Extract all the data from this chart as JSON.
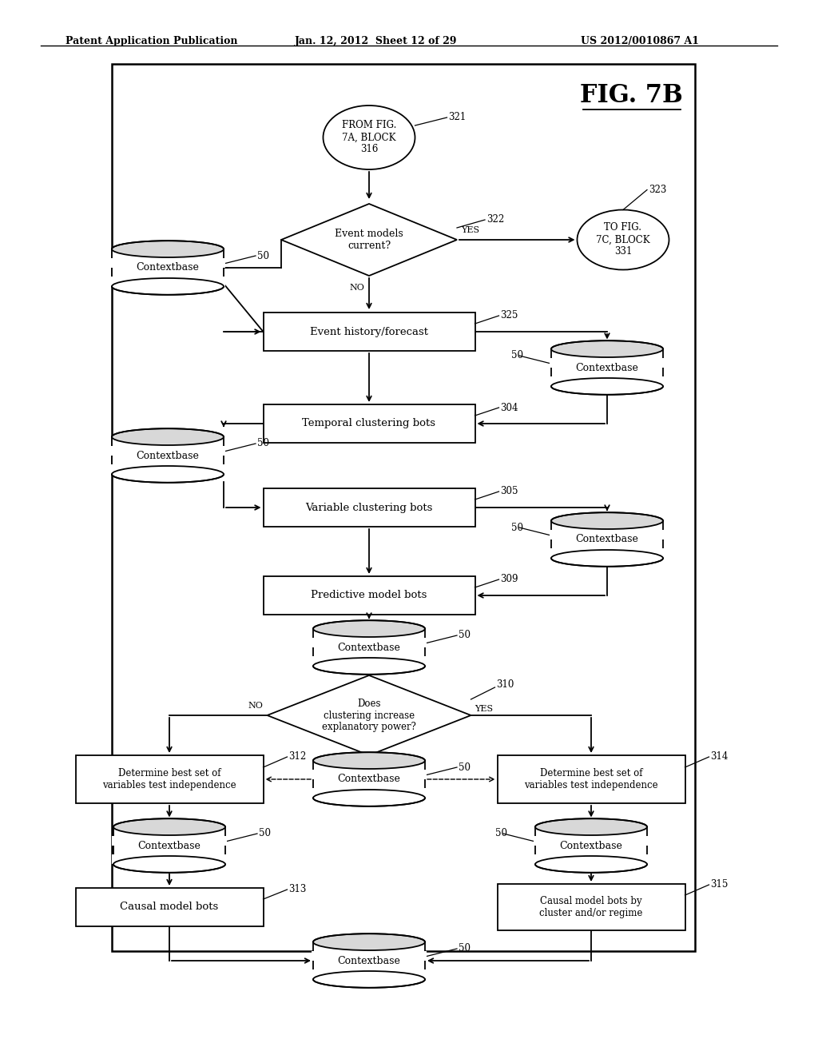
{
  "bg_color": "#ffffff",
  "header_left": "Patent Application Publication",
  "header_center": "Jan. 12, 2012  Sheet 12 of 29",
  "header_right": "US 2012/0010867 A1",
  "fig_title": "FIG. 7B",
  "lw": 1.3,
  "arrow_ms": 10
}
